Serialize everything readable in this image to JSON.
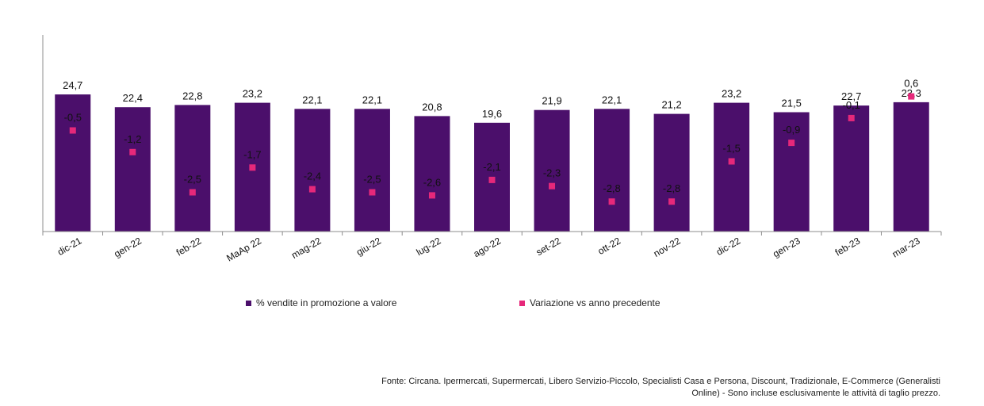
{
  "chart_data": {
    "type": "bar",
    "categories": [
      "dic-21",
      "gen-22",
      "feb-22",
      "MaAp 22",
      "mag-22",
      "giu-22",
      "lug-22",
      "ago-22",
      "set-22",
      "ott-22",
      "nov-22",
      "dic-22",
      "gen-23",
      "feb-23",
      "mar-23"
    ],
    "series": [
      {
        "name": "% vendite in promozione a valore",
        "type": "bar",
        "values": [
          24.7,
          22.4,
          22.8,
          23.2,
          22.1,
          22.1,
          20.8,
          19.6,
          21.9,
          22.1,
          21.2,
          23.2,
          21.5,
          22.7,
          23.3
        ],
        "labels": [
          "24,7",
          "22,4",
          "22,8",
          "23,2",
          "22,1",
          "22,1",
          "20,8",
          "19,6",
          "21,9",
          "22,1",
          "21,2",
          "23,2",
          "21,5",
          "22,7",
          "23,3"
        ],
        "color": "#4B0F6B"
      },
      {
        "name": "Variazione vs anno precedente",
        "type": "marker",
        "values": [
          -0.5,
          -1.2,
          -2.5,
          -1.7,
          -2.4,
          -2.5,
          -2.6,
          -2.1,
          -2.3,
          -2.8,
          -2.8,
          -1.5,
          -0.9,
          -0.1,
          0.6
        ],
        "labels": [
          "-0,5",
          "-1,2",
          "-2,5",
          "-1,7",
          "-2,4",
          "-2,5",
          "-2,6",
          "-2,1",
          "-2,3",
          "-2,8",
          "-2,8",
          "-1,5",
          "-0,9",
          "-0,1",
          "0,6"
        ],
        "color": "#E6287A"
      }
    ],
    "legend_position": "bottom",
    "grid": false
  },
  "source_line1": "Fonte: Circana. Ipermercati, Supermercati, Libero Servizio-Piccolo, Specialisti Casa e Persona, Discount, Tradizionale, E-Commerce (Generalisti",
  "source_line2": "Online) - Sono incluse esclusivamente le attività di taglio prezzo."
}
